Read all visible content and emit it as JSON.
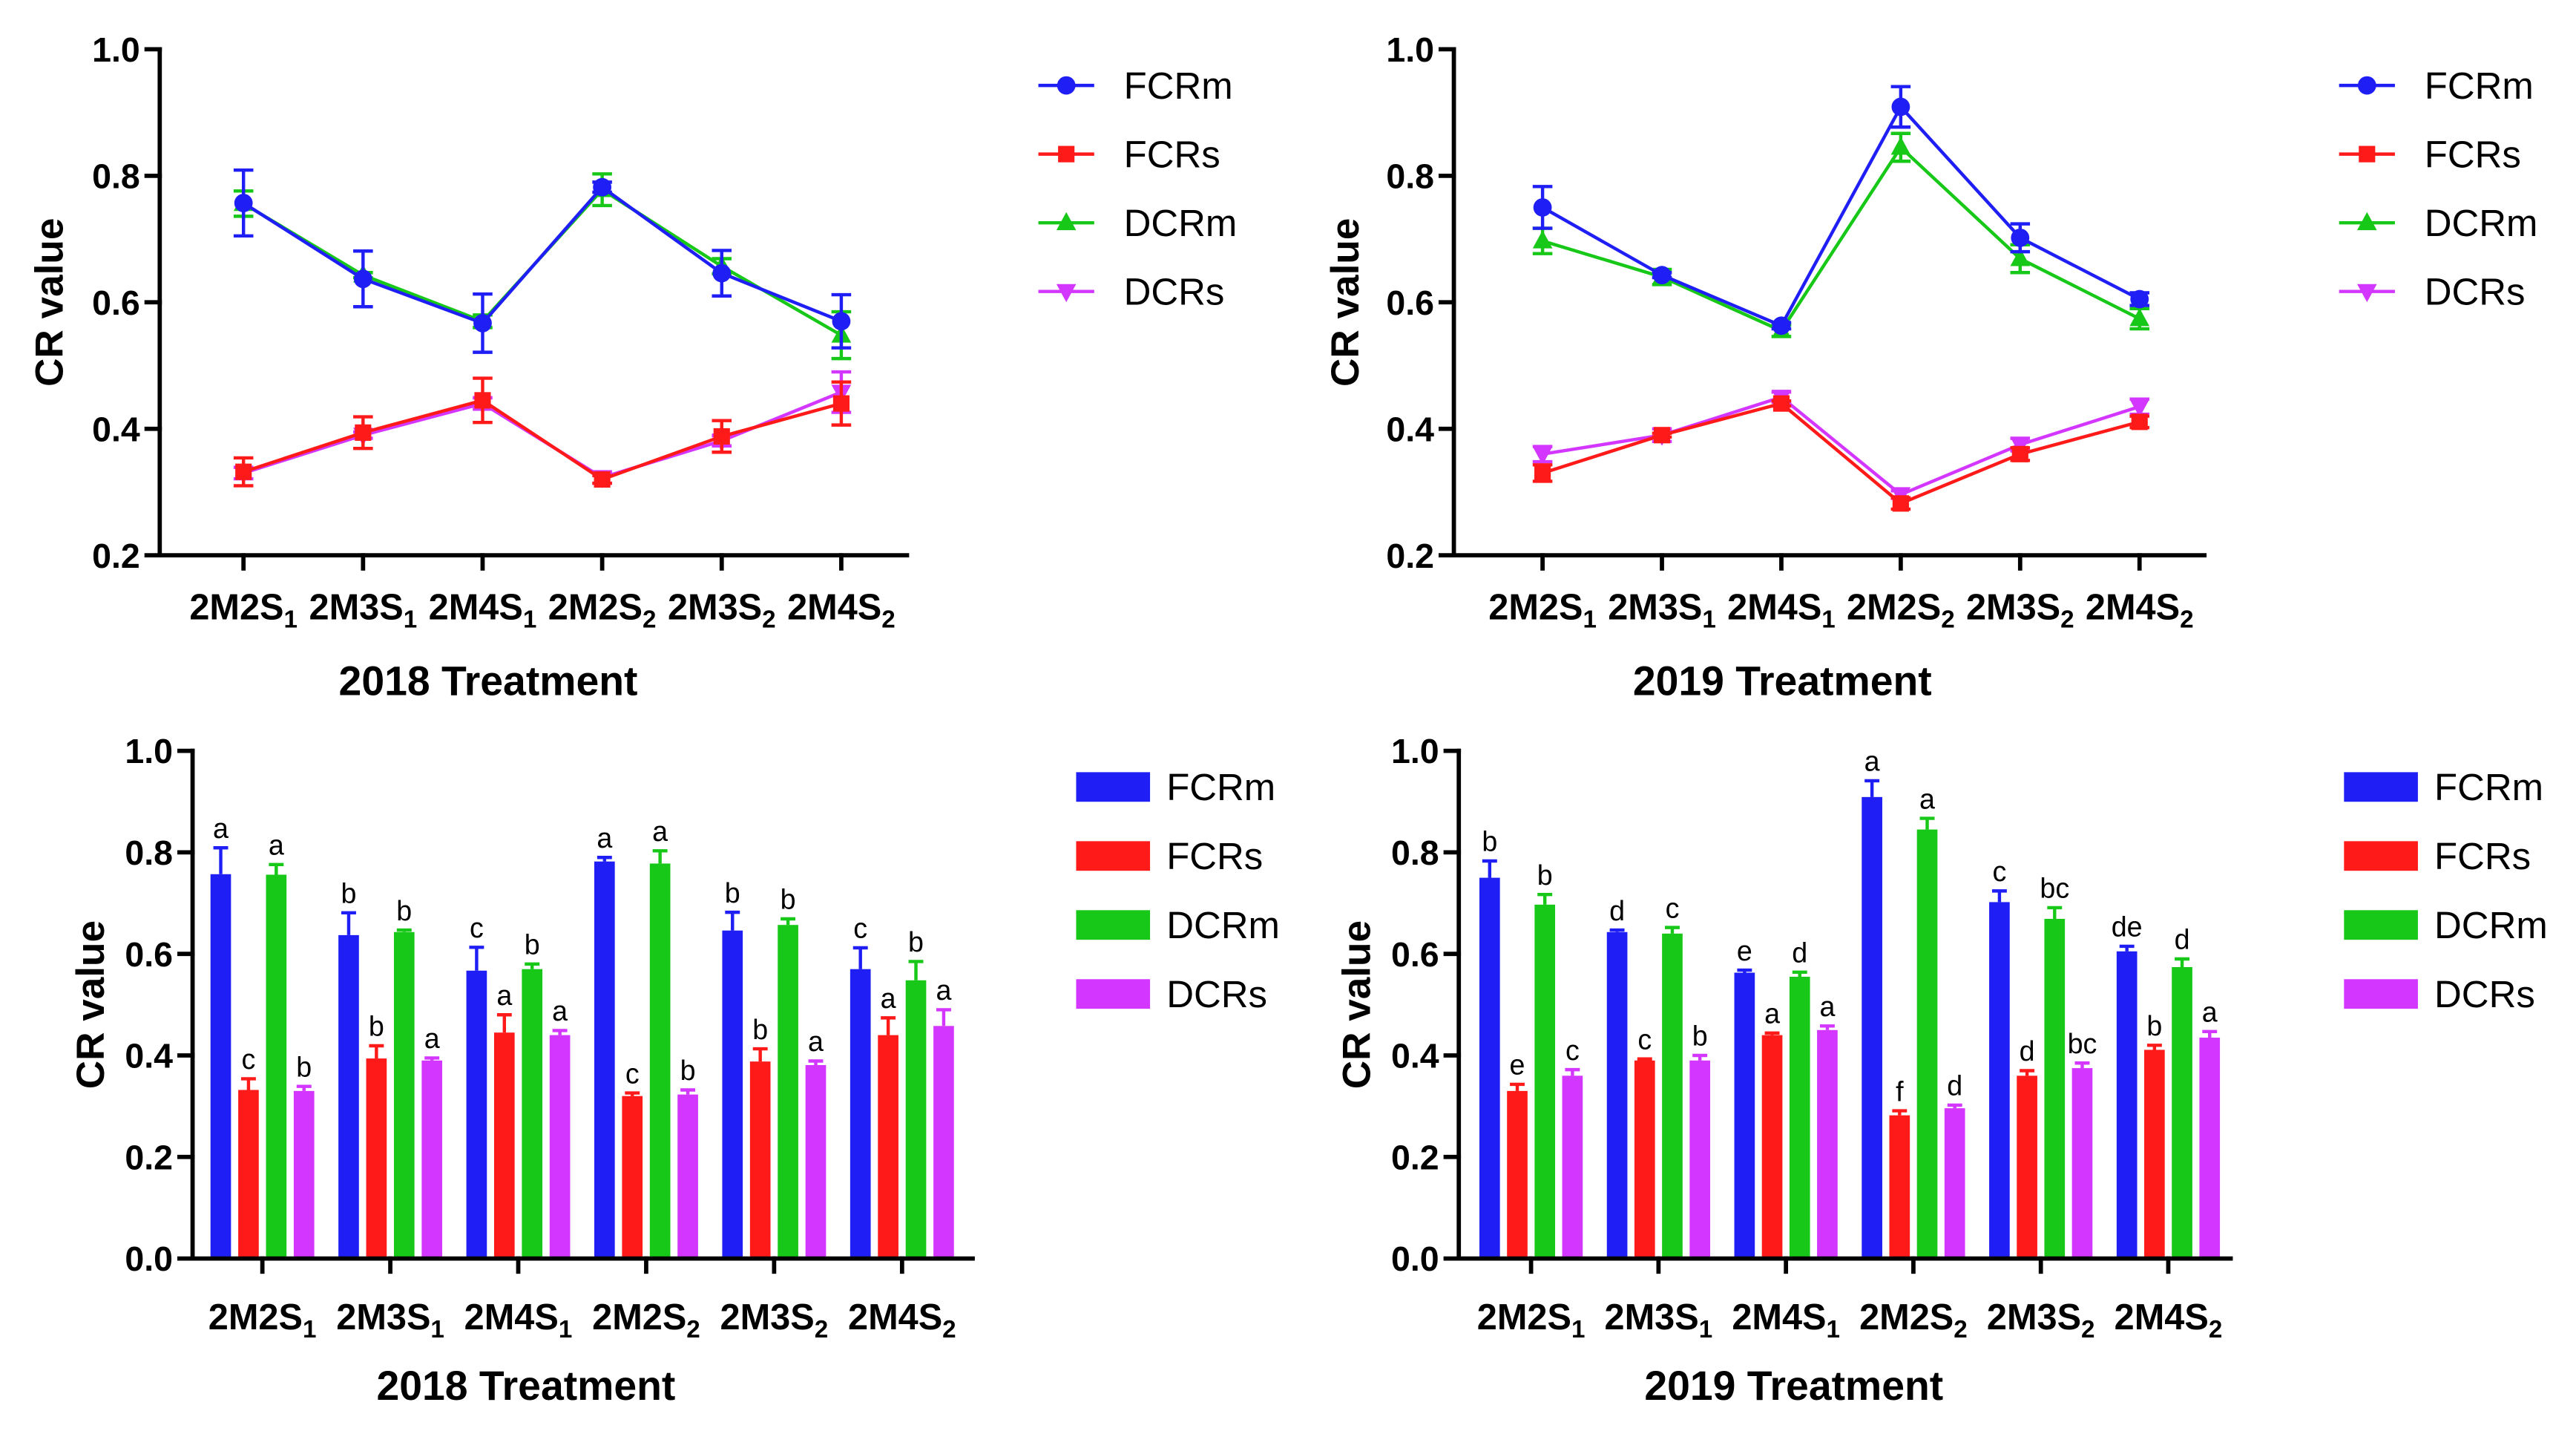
{
  "chart_data": [
    {
      "type": "line",
      "xlabel": "2018 Treatment",
      "ylabel": "CR value",
      "ylim": [
        0.2,
        1.0
      ],
      "ytick_labels": [
        "0.2",
        "0.4",
        "0.6",
        "0.8",
        "1.0"
      ],
      "legend": "right",
      "categories": [
        {
          "base": "2M2S",
          "sub": "1"
        },
        {
          "base": "2M3S",
          "sub": "1"
        },
        {
          "base": "2M4S",
          "sub": "1"
        },
        {
          "base": "2M2S",
          "sub": "2"
        },
        {
          "base": "2M3S",
          "sub": "2"
        },
        {
          "base": "2M4S",
          "sub": "2"
        }
      ],
      "series": [
        {
          "name": "FCRm",
          "marker": "circle",
          "color": "#1f1ff5",
          "values": [
            0.757,
            0.637,
            0.567,
            0.782,
            0.646,
            0.57
          ],
          "errors": [
            0.052,
            0.044,
            0.046,
            0.008,
            0.036,
            0.042
          ]
        },
        {
          "name": "FCRs",
          "marker": "square",
          "color": "#ff1a1a",
          "values": [
            0.332,
            0.394,
            0.445,
            0.32,
            0.388,
            0.44
          ],
          "errors": [
            0.022,
            0.025,
            0.035,
            0.006,
            0.025,
            0.034
          ]
        },
        {
          "name": "DCRm",
          "marker": "triangle-up",
          "color": "#18c818",
          "values": [
            0.756,
            0.643,
            0.57,
            0.778,
            0.657,
            0.548
          ],
          "errors": [
            0.02,
            0.004,
            0.01,
            0.025,
            0.012,
            0.037
          ]
        },
        {
          "name": "DCRs",
          "marker": "triangle-down",
          "color": "#d336ff",
          "values": [
            0.33,
            0.39,
            0.44,
            0.323,
            0.381,
            0.458
          ],
          "errors": [
            0.009,
            0.005,
            0.009,
            0.009,
            0.008,
            0.032
          ]
        }
      ]
    },
    {
      "type": "line",
      "xlabel": "2019 Treatment",
      "ylabel": "CR value",
      "ylim": [
        0.2,
        1.0
      ],
      "ytick_labels": [
        "0.2",
        "0.4",
        "0.6",
        "0.8",
        "1.0"
      ],
      "legend": "right",
      "categories": [
        {
          "base": "2M2S",
          "sub": "1"
        },
        {
          "base": "2M3S",
          "sub": "1"
        },
        {
          "base": "2M4S",
          "sub": "1"
        },
        {
          "base": "2M2S",
          "sub": "2"
        },
        {
          "base": "2M3S",
          "sub": "2"
        },
        {
          "base": "2M4S",
          "sub": "2"
        }
      ],
      "series": [
        {
          "name": "FCRm",
          "marker": "circle",
          "color": "#1f1ff5",
          "values": [
            0.75,
            0.643,
            0.563,
            0.909,
            0.702,
            0.605
          ],
          "errors": [
            0.033,
            0.004,
            0.005,
            0.032,
            0.022,
            0.01
          ]
        },
        {
          "name": "FCRs",
          "marker": "square",
          "color": "#ff1a1a",
          "values": [
            0.33,
            0.39,
            0.44,
            0.282,
            0.36,
            0.411
          ],
          "errors": [
            0.013,
            0.003,
            0.004,
            0.009,
            0.01,
            0.009
          ]
        },
        {
          "name": "DCRm",
          "marker": "triangle-up",
          "color": "#18c818",
          "values": [
            0.697,
            0.64,
            0.555,
            0.845,
            0.669,
            0.574
          ],
          "errors": [
            0.02,
            0.012,
            0.009,
            0.022,
            0.022,
            0.016
          ]
        },
        {
          "name": "DCRs",
          "marker": "triangle-down",
          "color": "#d336ff",
          "values": [
            0.36,
            0.39,
            0.45,
            0.296,
            0.375,
            0.435
          ],
          "errors": [
            0.012,
            0.01,
            0.008,
            0.006,
            0.01,
            0.012
          ]
        }
      ]
    },
    {
      "type": "bar",
      "xlabel": "2018 Treatment",
      "ylabel": "CR value",
      "ylim": [
        0.0,
        1.0
      ],
      "ytick_labels": [
        "0.0",
        "0.2",
        "0.4",
        "0.6",
        "0.8",
        "1.0"
      ],
      "legend": "right",
      "categories": [
        {
          "base": "2M2S",
          "sub": "1"
        },
        {
          "base": "2M3S",
          "sub": "1"
        },
        {
          "base": "2M4S",
          "sub": "1"
        },
        {
          "base": "2M2S",
          "sub": "2"
        },
        {
          "base": "2M3S",
          "sub": "2"
        },
        {
          "base": "2M4S",
          "sub": "2"
        }
      ],
      "series": [
        {
          "name": "FCRm",
          "color": "#1f1ff5",
          "values": [
            0.757,
            0.637,
            0.567,
            0.782,
            0.646,
            0.57
          ],
          "errors": [
            0.052,
            0.044,
            0.046,
            0.008,
            0.036,
            0.042
          ],
          "letters": [
            "a",
            "b",
            "c",
            "a",
            "b",
            "c"
          ]
        },
        {
          "name": "FCRs",
          "color": "#ff1a1a",
          "values": [
            0.332,
            0.394,
            0.445,
            0.32,
            0.388,
            0.44
          ],
          "errors": [
            0.022,
            0.025,
            0.035,
            0.006,
            0.025,
            0.034
          ],
          "letters": [
            "c",
            "b",
            "a",
            "c",
            "b",
            "a"
          ]
        },
        {
          "name": "DCRm",
          "color": "#18c818",
          "values": [
            0.756,
            0.643,
            0.57,
            0.778,
            0.657,
            0.548
          ],
          "errors": [
            0.02,
            0.004,
            0.01,
            0.025,
            0.012,
            0.037
          ],
          "letters": [
            "a",
            "b",
            "b",
            "a",
            "b",
            "b"
          ]
        },
        {
          "name": "DCRs",
          "color": "#d336ff",
          "values": [
            0.33,
            0.39,
            0.44,
            0.323,
            0.381,
            0.458
          ],
          "errors": [
            0.009,
            0.005,
            0.009,
            0.009,
            0.008,
            0.032
          ],
          "letters": [
            "b",
            "a",
            "a",
            "b",
            "a",
            "a"
          ]
        }
      ]
    },
    {
      "type": "bar",
      "xlabel": "2019 Treatment",
      "ylabel": "CR value",
      "ylim": [
        0.0,
        1.0
      ],
      "ytick_labels": [
        "0.0",
        "0.2",
        "0.4",
        "0.6",
        "0.8",
        "1.0"
      ],
      "legend": "right",
      "categories": [
        {
          "base": "2M2S",
          "sub": "1"
        },
        {
          "base": "2M3S",
          "sub": "1"
        },
        {
          "base": "2M4S",
          "sub": "1"
        },
        {
          "base": "2M2S",
          "sub": "2"
        },
        {
          "base": "2M3S",
          "sub": "2"
        },
        {
          "base": "2M4S",
          "sub": "2"
        }
      ],
      "series": [
        {
          "name": "FCRm",
          "color": "#1f1ff5",
          "values": [
            0.75,
            0.643,
            0.563,
            0.909,
            0.702,
            0.605
          ],
          "errors": [
            0.033,
            0.004,
            0.005,
            0.032,
            0.022,
            0.01
          ],
          "letters": [
            "b",
            "d",
            "e",
            "a",
            "c",
            "de"
          ]
        },
        {
          "name": "FCRs",
          "color": "#ff1a1a",
          "values": [
            0.33,
            0.39,
            0.44,
            0.282,
            0.36,
            0.411
          ],
          "errors": [
            0.013,
            0.003,
            0.004,
            0.009,
            0.01,
            0.009
          ],
          "letters": [
            "e",
            "c",
            "a",
            "f",
            "d",
            "b"
          ]
        },
        {
          "name": "DCRm",
          "color": "#18c818",
          "values": [
            0.697,
            0.64,
            0.555,
            0.845,
            0.669,
            0.574
          ],
          "errors": [
            0.02,
            0.012,
            0.009,
            0.022,
            0.022,
            0.016
          ],
          "letters": [
            "b",
            "c",
            "d",
            "a",
            "bc",
            "d"
          ]
        },
        {
          "name": "DCRs",
          "color": "#d336ff",
          "values": [
            0.36,
            0.39,
            0.45,
            0.296,
            0.375,
            0.435
          ],
          "errors": [
            0.012,
            0.01,
            0.008,
            0.006,
            0.01,
            0.012
          ],
          "letters": [
            "c",
            "b",
            "a",
            "d",
            "bc",
            "a"
          ]
        }
      ]
    }
  ]
}
